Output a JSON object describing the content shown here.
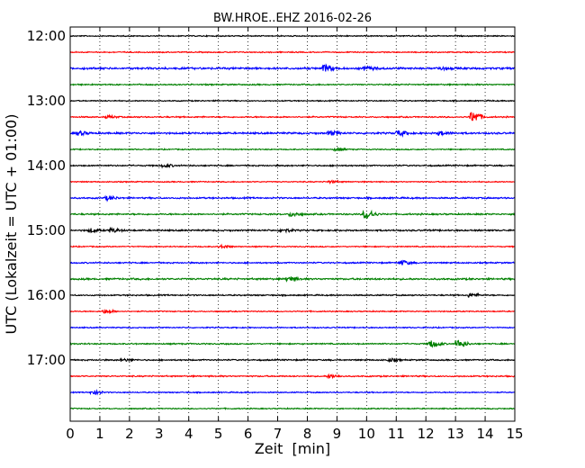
{
  "chart_data": {
    "type": "line",
    "title": "BW.HROE..EHZ 2016-02-26",
    "xlabel": "Zeit  [min]",
    "ylabel": "UTC (Lokalzeit = UTC + 01:00)",
    "xlim": [
      0,
      15
    ],
    "x_ticks": [
      "0",
      "1",
      "2",
      "3",
      "4",
      "5",
      "6",
      "7",
      "8",
      "9",
      "10",
      "11",
      "12",
      "13",
      "14",
      "15"
    ],
    "y_ticks": [
      "12:00",
      "13:00",
      "14:00",
      "15:00",
      "16:00",
      "17:00"
    ],
    "x_grid": "dotted",
    "colors": [
      "#000000",
      "#ff0000",
      "#0000ff",
      "#008000"
    ],
    "series": [
      {
        "start": "12:00",
        "color": "#000000",
        "amplitude": 0.5,
        "events": []
      },
      {
        "start": "12:15",
        "color": "#ff0000",
        "amplitude": 0.5,
        "events": []
      },
      {
        "start": "12:30",
        "color": "#0000ff",
        "amplitude": 0.9,
        "events": [
          {
            "t": 8.6,
            "amp": 3.2
          },
          {
            "t": 10.0,
            "amp": 1.6
          },
          {
            "t": 12.5,
            "amp": 1.3
          }
        ]
      },
      {
        "start": "12:45",
        "color": "#008000",
        "amplitude": 0.6,
        "events": []
      },
      {
        "start": "13:00",
        "color": "#000000",
        "amplitude": 0.5,
        "events": []
      },
      {
        "start": "13:15",
        "color": "#ff0000",
        "amplitude": 0.6,
        "events": [
          {
            "t": 1.3,
            "amp": 1.1
          },
          {
            "t": 13.6,
            "amp": 5.5
          }
        ]
      },
      {
        "start": "13:30",
        "color": "#0000ff",
        "amplitude": 0.8,
        "events": [
          {
            "t": 0.3,
            "amp": 1.8
          },
          {
            "t": 8.8,
            "amp": 2.0
          },
          {
            "t": 11.1,
            "amp": 2.5
          },
          {
            "t": 12.5,
            "amp": 1.6
          }
        ]
      },
      {
        "start": "13:45",
        "color": "#008000",
        "amplitude": 0.5,
        "events": [
          {
            "t": 9.0,
            "amp": 1.3
          }
        ]
      },
      {
        "start": "14:00",
        "color": "#000000",
        "amplitude": 0.6,
        "events": [
          {
            "t": 3.2,
            "amp": 1.2
          }
        ]
      },
      {
        "start": "14:15",
        "color": "#ff0000",
        "amplitude": 0.5,
        "events": [
          {
            "t": 8.8,
            "amp": 1.1
          }
        ]
      },
      {
        "start": "14:30",
        "color": "#0000ff",
        "amplitude": 0.7,
        "events": [
          {
            "t": 1.3,
            "amp": 1.9
          }
        ]
      },
      {
        "start": "14:45",
        "color": "#008000",
        "amplitude": 0.7,
        "events": [
          {
            "t": 7.5,
            "amp": 2.0
          },
          {
            "t": 10.0,
            "amp": 4.6
          }
        ]
      },
      {
        "start": "15:00",
        "color": "#000000",
        "amplitude": 0.7,
        "events": [
          {
            "t": 0.7,
            "amp": 1.8
          },
          {
            "t": 1.4,
            "amp": 2.0
          },
          {
            "t": 7.2,
            "amp": 1.4
          }
        ]
      },
      {
        "start": "15:15",
        "color": "#ff0000",
        "amplitude": 0.5,
        "events": [
          {
            "t": 5.1,
            "amp": 1.6
          }
        ]
      },
      {
        "start": "15:30",
        "color": "#0000ff",
        "amplitude": 0.6,
        "events": [
          {
            "t": 11.2,
            "amp": 2.2
          }
        ]
      },
      {
        "start": "15:45",
        "color": "#008000",
        "amplitude": 0.8,
        "events": [
          {
            "t": 7.4,
            "amp": 2.4
          }
        ]
      },
      {
        "start": "16:00",
        "color": "#000000",
        "amplitude": 0.6,
        "events": [
          {
            "t": 13.5,
            "amp": 2.0
          }
        ]
      },
      {
        "start": "16:15",
        "color": "#ff0000",
        "amplitude": 0.5,
        "events": [
          {
            "t": 1.2,
            "amp": 1.8
          }
        ]
      },
      {
        "start": "16:30",
        "color": "#0000ff",
        "amplitude": 0.5,
        "events": []
      },
      {
        "start": "16:45",
        "color": "#008000",
        "amplitude": 0.6,
        "events": [
          {
            "t": 12.2,
            "amp": 3.6
          },
          {
            "t": 13.1,
            "amp": 3.8
          }
        ]
      },
      {
        "start": "17:00",
        "color": "#000000",
        "amplitude": 0.6,
        "events": [
          {
            "t": 1.8,
            "amp": 1.2
          },
          {
            "t": 10.8,
            "amp": 1.4
          }
        ]
      },
      {
        "start": "17:15",
        "color": "#ff0000",
        "amplitude": 0.6,
        "events": [
          {
            "t": 8.8,
            "amp": 1.6
          }
        ]
      },
      {
        "start": "17:30",
        "color": "#0000ff",
        "amplitude": 0.5,
        "events": [
          {
            "t": 0.8,
            "amp": 1.8
          }
        ]
      },
      {
        "start": "17:45",
        "color": "#008000",
        "amplitude": 0.5,
        "events": []
      }
    ]
  }
}
